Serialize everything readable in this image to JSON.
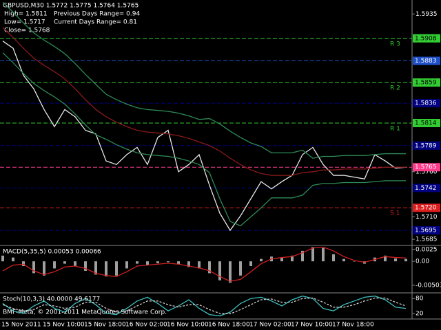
{
  "chart_data": [
    {
      "type": "price",
      "header": {
        "line": "GBPUSD,M30 1.5772 1.5775 1.5764 1.5765",
        "high": "High= 1.5811",
        "prev_range": "Previous Days Range= 0.94",
        "low": "Low= 1.5717",
        "cur_range": "Current Days Range= 0.81",
        "close": "Close= 1.5768"
      },
      "categories": [
        "15 Nov 2011",
        null,
        null,
        null,
        "15 Nov 10:00",
        null,
        null,
        null,
        "15 Nov 18:00",
        null,
        null,
        null,
        "16 Nov 02:00",
        null,
        null,
        null,
        "16 Nov 10:00",
        null,
        null,
        null,
        "16 Nov 18:00",
        null,
        null,
        null,
        "17 Nov 02:00",
        null,
        null,
        null,
        "17 Nov 10:00",
        null,
        null,
        null,
        "17 Nov 18:00",
        null,
        null,
        null,
        null,
        null,
        null,
        null
      ],
      "series": [
        {
          "color": "#e8e8e8",
          "values": [
            1.5905,
            1.5897,
            1.5867,
            1.5852,
            1.5829,
            1.581,
            1.5829,
            1.5821,
            1.5806,
            1.5802,
            1.5772,
            1.5768,
            1.5779,
            1.5787,
            1.5768,
            1.5798,
            1.5806,
            1.576,
            1.5768,
            1.5779,
            1.5745,
            1.5714,
            1.5695,
            1.5711,
            1.573,
            1.5749,
            1.5741,
            1.5749,
            1.5756,
            1.5779,
            1.5787,
            1.5768,
            1.5756,
            1.5756,
            1.5754,
            1.5752,
            1.5779,
            1.5772,
            1.5764,
            1.5765
          ]
        },
        {
          "color": "#8b1a1a",
          "values": [
            1.592,
            1.5909,
            1.5897,
            1.5886,
            1.5878,
            1.5871,
            1.5863,
            1.5852,
            1.584,
            1.5829,
            1.5821,
            1.5815,
            1.581,
            1.5806,
            1.5804,
            1.5803,
            1.5802,
            1.58,
            1.5797,
            1.5793,
            1.5789,
            1.5783,
            1.5775,
            1.5768,
            1.5762,
            1.5758,
            1.5756,
            1.5756,
            1.5756,
            1.5759,
            1.576,
            1.5762,
            1.5762,
            1.5763,
            1.5763,
            1.5763,
            1.5764,
            1.5765,
            1.5765,
            1.5765
          ]
        },
        {
          "color": "#2e8b57",
          "values": [
            1.5948,
            1.5937,
            1.5925,
            1.5914,
            1.5906,
            1.5899,
            1.5891,
            1.588,
            1.5868,
            1.5857,
            1.5846,
            1.584,
            1.5835,
            1.5831,
            1.5829,
            1.5828,
            1.5827,
            1.5825,
            1.5822,
            1.5818,
            1.5819,
            1.5813,
            1.5805,
            1.5798,
            1.5792,
            1.5788,
            1.5781,
            1.5781,
            1.5781,
            1.5784,
            1.5775,
            1.5777,
            1.5777,
            1.5778,
            1.5778,
            1.5778,
            1.5779,
            1.578,
            1.578,
            1.578
          ]
        },
        {
          "color": "#2e8b57",
          "values": [
            1.5892,
            1.5881,
            1.5869,
            1.5858,
            1.585,
            1.5843,
            1.5835,
            1.5824,
            1.5812,
            1.5801,
            1.5796,
            1.579,
            1.5785,
            1.5781,
            1.5779,
            1.5778,
            1.5777,
            1.5775,
            1.5772,
            1.5768,
            1.5759,
            1.573,
            1.5705,
            1.57,
            1.571,
            1.572,
            1.5731,
            1.5731,
            1.5731,
            1.5734,
            1.5745,
            1.5747,
            1.5747,
            1.5748,
            1.5748,
            1.5748,
            1.5749,
            1.575,
            1.575,
            1.575
          ]
        }
      ],
      "ylim": [
        1.5679,
        1.5949
      ],
      "yticks": [
        1.5935,
        {
          "value": 1.576,
          "label": "1.5760"
        },
        {
          "value": 1.571,
          "label": "1.5710"
        },
        1.5685
      ],
      "levels": [
        {
          "value": 1.5908,
          "label": "1.5908",
          "color": "#32cd32",
          "tag": "R 3"
        },
        {
          "value": 1.5883,
          "label": "1.5883",
          "color": "#1e50c8"
        },
        {
          "value": 1.5859,
          "label": "1.5859",
          "color": "#32cd32",
          "tag": "R 2"
        },
        {
          "value": 1.5836,
          "label": "1.5836",
          "color": "#000080"
        },
        {
          "value": 1.5814,
          "label": "1.5814",
          "color": "#32cd32",
          "tag": "R 1"
        },
        {
          "value": 1.5789,
          "label": "1.5789",
          "color": "#000080"
        },
        {
          "value": 1.5765,
          "label": "1.5765",
          "color": "#ff3c8c"
        },
        {
          "value": 1.5742,
          "label": "1.5742",
          "color": "#000080"
        },
        {
          "value": 1.572,
          "label": "1.5720",
          "color": "#dc1e1e",
          "tag": "S 1"
        },
        {
          "value": 1.5695,
          "label": "1.5695",
          "color": "#000080"
        }
      ]
    },
    {
      "type": "macd",
      "title": "MACD(5,35,5) 0.00053 0.00066",
      "series": [
        {
          "style": "histogram",
          "color": "#a0a0a0",
          "values": [
            0.0012,
            0.0008,
            -0.001,
            -0.0025,
            -0.003,
            -0.0015,
            -0.0005,
            -0.001,
            -0.002,
            -0.0028,
            -0.0032,
            -0.003,
            -0.0015,
            -0.0005,
            -0.0008,
            -0.0004,
            -0.0002,
            -0.0006,
            -0.0012,
            -0.0015,
            -0.0025,
            -0.004,
            -0.0045,
            -0.003,
            -0.001,
            0.0005,
            0.001,
            0.0008,
            0.0012,
            0.0022,
            0.003,
            0.0028,
            0.0015,
            0.0005,
            0,
            -0.0005,
            0.0008,
            0.0012,
            0.0006,
            0.0005
          ]
        },
        {
          "style": "line",
          "color": "#d22020",
          "values": [
            -0.002,
            -0.0008,
            -0.0006,
            -0.002,
            -0.0028,
            -0.0022,
            -0.0012,
            -0.001,
            -0.0015,
            -0.0025,
            -0.003,
            -0.0032,
            -0.0022,
            -0.001,
            -0.0008,
            -0.0006,
            -0.0004,
            -0.0006,
            -0.001,
            -0.0014,
            -0.002,
            -0.0032,
            -0.0042,
            -0.0038,
            -0.0022,
            -0.0005,
            0.0005,
            0.0008,
            0.001,
            0.0018,
            0.0028,
            0.003,
            0.0022,
            0.001,
            0.0002,
            -0.0002,
            0.0004,
            0.001,
            0.0008,
            0.0007
          ]
        }
      ],
      "ylim": [
        -0.0065,
        0.0032
      ],
      "yticks": [
        0.0025,
        {
          "value": 0,
          "label": "0.00"
        },
        -0.00503
      ]
    },
    {
      "type": "stoch",
      "title": "Stoch(10,3,3) 40.0000 49.6177",
      "series": [
        {
          "style": "line",
          "color": "#40c0c0",
          "values": [
            60,
            30,
            20,
            50,
            70,
            40,
            25,
            60,
            80,
            55,
            20,
            15,
            40,
            70,
            85,
            60,
            30,
            50,
            75,
            40,
            15,
            10,
            25,
            60,
            80,
            85,
            70,
            50,
            75,
            90,
            80,
            40,
            30,
            55,
            70,
            85,
            90,
            75,
            45,
            40
          ]
        },
        {
          "style": "dashed",
          "color": "#d0d0d0",
          "values": [
            55,
            40,
            30,
            35,
            55,
            50,
            40,
            45,
            65,
            65,
            40,
            25,
            30,
            50,
            70,
            70,
            55,
            45,
            55,
            55,
            35,
            20,
            18,
            35,
            55,
            75,
            78,
            65,
            65,
            80,
            82,
            65,
            45,
            45,
            55,
            70,
            82,
            82,
            65,
            50
          ]
        }
      ],
      "ylim": [
        0,
        100
      ],
      "yticks": [
        80,
        20
      ]
    }
  ],
  "watermark": "BMF-Meta, © 2001-2011 MetaQuotes Software Corp."
}
